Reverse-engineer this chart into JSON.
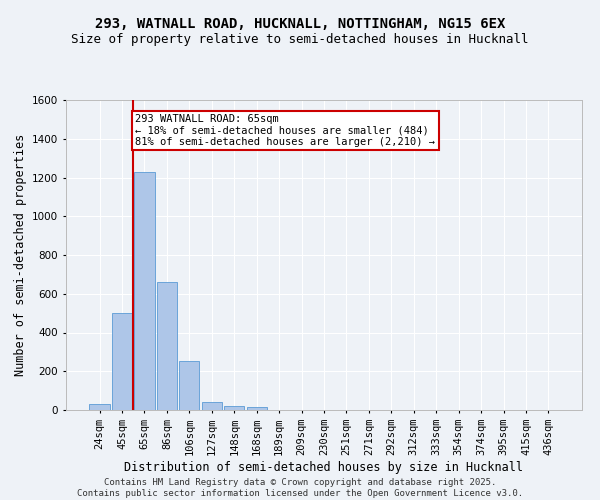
{
  "title1": "293, WATNALL ROAD, HUCKNALL, NOTTINGHAM, NG15 6EX",
  "title2": "Size of property relative to semi-detached houses in Hucknall",
  "xlabel": "Distribution of semi-detached houses by size in Hucknall",
  "ylabel": "Number of semi-detached properties",
  "categories": [
    "24sqm",
    "45sqm",
    "65sqm",
    "86sqm",
    "106sqm",
    "127sqm",
    "148sqm",
    "168sqm",
    "189sqm",
    "209sqm",
    "230sqm",
    "251sqm",
    "271sqm",
    "292sqm",
    "312sqm",
    "333sqm",
    "354sqm",
    "374sqm",
    "395sqm",
    "415sqm",
    "436sqm"
  ],
  "values": [
    30,
    500,
    1230,
    660,
    255,
    40,
    20,
    15,
    0,
    0,
    0,
    0,
    0,
    0,
    0,
    0,
    0,
    0,
    0,
    0,
    0
  ],
  "bar_color": "#aec6e8",
  "bar_edge_color": "#5b9bd5",
  "property_line_index": 2,
  "annotation_title": "293 WATNALL ROAD: 65sqm",
  "annotation_line1": "← 18% of semi-detached houses are smaller (484)",
  "annotation_line2": "81% of semi-detached houses are larger (2,210) →",
  "annotation_box_color": "#ffffff",
  "annotation_box_edge": "#cc0000",
  "red_line_color": "#cc0000",
  "ylim": [
    0,
    1600
  ],
  "yticks": [
    0,
    200,
    400,
    600,
    800,
    1000,
    1200,
    1400,
    1600
  ],
  "background_color": "#eef2f7",
  "grid_color": "#ffffff",
  "footer": "Contains HM Land Registry data © Crown copyright and database right 2025.\nContains public sector information licensed under the Open Government Licence v3.0.",
  "title1_fontsize": 10,
  "title2_fontsize": 9,
  "xlabel_fontsize": 8.5,
  "ylabel_fontsize": 8.5,
  "tick_fontsize": 7.5,
  "annot_fontsize": 7.5,
  "footer_fontsize": 6.5
}
